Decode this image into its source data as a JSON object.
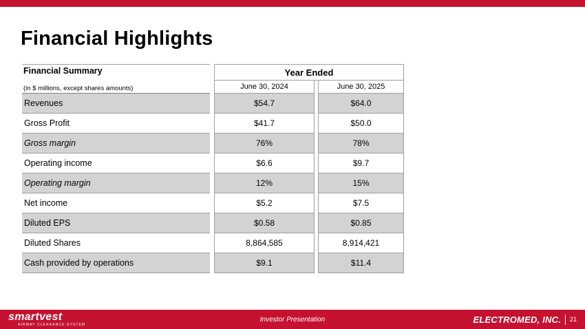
{
  "colors": {
    "brand_red": "#C41230",
    "row_shade": "#D3D3D3"
  },
  "slide": {
    "title": "Financial Highlights"
  },
  "table": {
    "header_title": "Financial Summary",
    "header_subtitle": "(in $ millions, except shares amounts)",
    "group_header": "Year Ended",
    "col_headers": [
      "June 30, 2024",
      "June 30, 2025"
    ],
    "rows": [
      {
        "label": "Revenues",
        "y2024": "$54.7",
        "y2025": "$64.0"
      },
      {
        "label": "Gross Profit",
        "y2024": "$41.7",
        "y2025": "$50.0"
      },
      {
        "label": "Gross margin",
        "y2024": "76%",
        "y2025": "78%"
      },
      {
        "label": "Operating income",
        "y2024": "$6.6",
        "y2025": "$9.7"
      },
      {
        "label": "Operating margin",
        "y2024": "12%",
        "y2025": "15%"
      },
      {
        "label": "Net income",
        "y2024": "$5.2",
        "y2025": "$7.5"
      },
      {
        "label": "Diluted EPS",
        "y2024": "$0.58",
        "y2025": "$0.85"
      },
      {
        "label": "Diluted Shares",
        "y2024": "8,864,585",
        "y2025": "8,914,421"
      },
      {
        "label": "Cash provided by operations",
        "y2024": "$9.1",
        "y2025": "$11.4"
      }
    ]
  },
  "footer": {
    "logo": "smartvest",
    "logo_tagline": "AIRWAY CLEARANCE SYSTEM",
    "center_text": "Investor Presentation",
    "company": "ELECTROMED, INC.",
    "page_number": "21"
  }
}
